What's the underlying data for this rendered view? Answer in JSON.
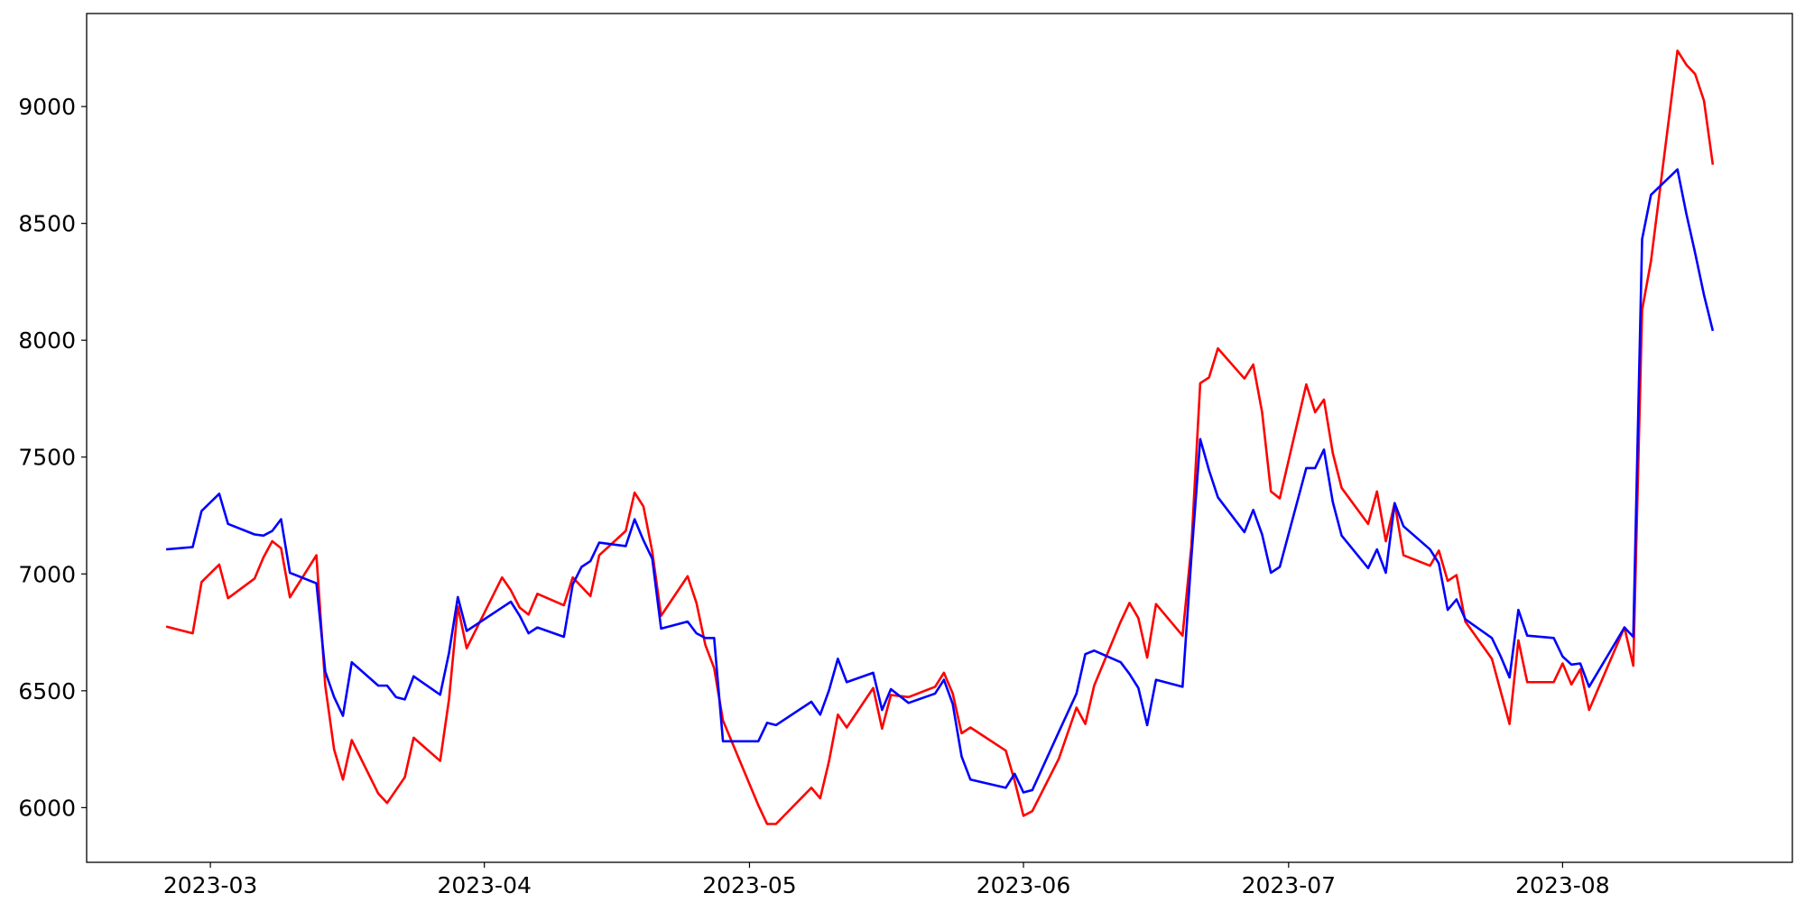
{
  "chart_data": {
    "type": "line",
    "x": [
      "2023-02-24",
      "2023-02-27",
      "2023-02-28",
      "2023-03-02",
      "2023-03-03",
      "2023-03-06",
      "2023-03-07",
      "2023-03-08",
      "2023-03-09",
      "2023-03-10",
      "2023-03-13",
      "2023-03-14",
      "2023-03-15",
      "2023-03-16",
      "2023-03-17",
      "2023-03-20",
      "2023-03-21",
      "2023-03-22",
      "2023-03-23",
      "2023-03-24",
      "2023-03-27",
      "2023-03-28",
      "2023-03-29",
      "2023-03-30",
      "2023-04-03",
      "2023-04-04",
      "2023-04-05",
      "2023-04-06",
      "2023-04-07",
      "2023-04-10",
      "2023-04-11",
      "2023-04-12",
      "2023-04-13",
      "2023-04-14",
      "2023-04-17",
      "2023-04-18",
      "2023-04-19",
      "2023-04-20",
      "2023-04-21",
      "2023-04-24",
      "2023-04-25",
      "2023-04-26",
      "2023-04-27",
      "2023-04-28",
      "2023-05-02",
      "2023-05-03",
      "2023-05-04",
      "2023-05-08",
      "2023-05-09",
      "2023-05-10",
      "2023-05-11",
      "2023-05-12",
      "2023-05-15",
      "2023-05-16",
      "2023-05-17",
      "2023-05-19",
      "2023-05-22",
      "2023-05-23",
      "2023-05-24",
      "2023-05-25",
      "2023-05-26",
      "2023-05-30",
      "2023-05-31",
      "2023-06-01",
      "2023-06-02",
      "2023-06-05",
      "2023-06-07",
      "2023-06-08",
      "2023-06-09",
      "2023-06-12",
      "2023-06-13",
      "2023-06-14",
      "2023-06-15",
      "2023-06-16",
      "2023-06-19",
      "2023-06-20",
      "2023-06-21",
      "2023-06-22",
      "2023-06-23",
      "2023-06-26",
      "2023-06-27",
      "2023-06-28",
      "2023-06-29",
      "2023-06-30",
      "2023-07-03",
      "2023-07-04",
      "2023-07-05",
      "2023-07-06",
      "2023-07-07",
      "2023-07-10",
      "2023-07-11",
      "2023-07-12",
      "2023-07-13",
      "2023-07-14",
      "2023-07-17",
      "2023-07-18",
      "2023-07-19",
      "2023-07-20",
      "2023-07-21",
      "2023-07-24",
      "2023-07-25",
      "2023-07-26",
      "2023-07-27",
      "2023-07-28",
      "2023-07-31",
      "2023-08-01",
      "2023-08-02",
      "2023-08-03",
      "2023-08-04",
      "2023-08-08",
      "2023-08-09",
      "2023-08-10",
      "2023-08-11",
      "2023-08-14",
      "2023-08-15",
      "2023-08-16",
      "2023-08-17",
      "2023-08-18"
    ],
    "series": [
      {
        "color": "#ff0000",
        "values": [
          6775,
          6746,
          6965,
          7040,
          6896,
          6980,
          7070,
          7140,
          7110,
          6900,
          7080,
          6522,
          6249,
          6120,
          6289,
          6060,
          6020,
          6075,
          6130,
          6299,
          6200,
          6463,
          6860,
          6682,
          6985,
          6930,
          6856,
          6826,
          6915,
          6866,
          6985,
          6945,
          6905,
          7080,
          7184,
          7348,
          7289,
          7095,
          6821,
          6990,
          6876,
          6697,
          6597,
          6373,
          6010,
          5930,
          5930,
          6085,
          6040,
          6199,
          6398,
          6343,
          6512,
          6338,
          6482,
          6473,
          6517,
          6577,
          6488,
          6318,
          6343,
          6244,
          6115,
          5965,
          5985,
          6209,
          6428,
          6358,
          6522,
          6796,
          6876,
          6811,
          6642,
          6871,
          6736,
          7119,
          7816,
          7841,
          7965,
          7836,
          7896,
          7692,
          7353,
          7323,
          7811,
          7692,
          7746,
          7517,
          7368,
          7214,
          7353,
          7140,
          7303,
          7080,
          7035,
          7100,
          6970,
          6995,
          6796,
          6637,
          6497,
          6358,
          6716,
          6537,
          6537,
          6617,
          6527,
          6592,
          6418,
          6771,
          6607,
          8129,
          8338,
          9239,
          9179,
          9139,
          9025,
          8751
        ]
      },
      {
        "color": "#0000ff",
        "values": [
          7105,
          7115,
          7269,
          7343,
          7214,
          7169,
          7164,
          7184,
          7234,
          7005,
          6960,
          6582,
          6473,
          6393,
          6622,
          6522,
          6522,
          6473,
          6463,
          6562,
          6483,
          6662,
          6901,
          6756,
          6856,
          6881,
          6821,
          6746,
          6771,
          6731,
          6955,
          7030,
          7055,
          7134,
          7119,
          7234,
          7144,
          7065,
          6766,
          6796,
          6746,
          6726,
          6726,
          6284,
          6284,
          6363,
          6353,
          6453,
          6398,
          6502,
          6637,
          6537,
          6577,
          6418,
          6507,
          6448,
          6488,
          6547,
          6443,
          6219,
          6120,
          6085,
          6145,
          6065,
          6075,
          6324,
          6488,
          6657,
          6672,
          6622,
          6572,
          6512,
          6353,
          6547,
          6517,
          7070,
          7577,
          7443,
          7328,
          7179,
          7274,
          7169,
          7005,
          7030,
          7453,
          7453,
          7532,
          7308,
          7164,
          7025,
          7105,
          7005,
          7303,
          7204,
          7105,
          7045,
          6846,
          6891,
          6806,
          6726,
          6647,
          6557,
          6846,
          6736,
          6726,
          6647,
          6612,
          6617,
          6517,
          6771,
          6731,
          8433,
          8622,
          8731,
          8542,
          8373,
          8194,
          8040
        ]
      }
    ],
    "xlim": [
      "2023-02-15",
      "2023-08-27"
    ],
    "xticks": [
      {
        "value": "2023-03-01",
        "label": "2023-03"
      },
      {
        "value": "2023-04-01",
        "label": "2023-04"
      },
      {
        "value": "2023-05-01",
        "label": "2023-05"
      },
      {
        "value": "2023-06-01",
        "label": "2023-06"
      },
      {
        "value": "2023-07-01",
        "label": "2023-07"
      },
      {
        "value": "2023-08-01",
        "label": "2023-08"
      }
    ],
    "ylim": [
      5766,
      9398
    ],
    "yticks": [
      6000,
      6500,
      7000,
      7500,
      8000,
      8500,
      9000
    ],
    "grid": false
  }
}
